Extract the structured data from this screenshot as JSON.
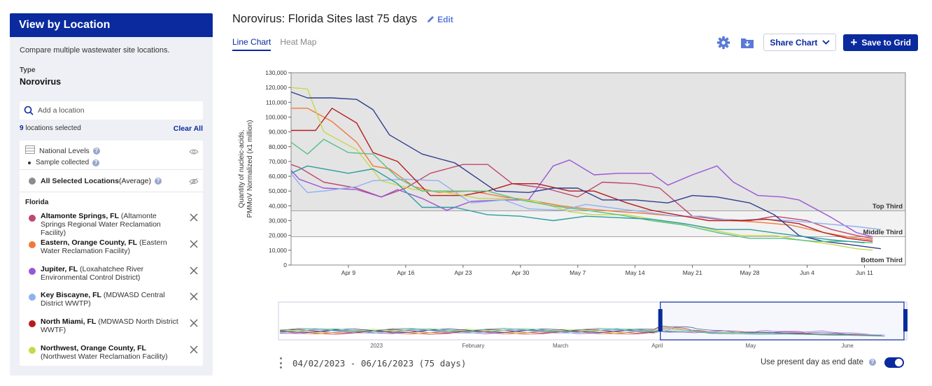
{
  "sidebar": {
    "header": "View by Location",
    "subtitle": "Compare multiple wastewater site locations.",
    "type_label": "Type",
    "type_value": "Norovirus",
    "search_placeholder": "Add a location",
    "selected_count": "9",
    "selected_suffix": " locations selected",
    "clear_all": "Clear All",
    "national_levels": "National Levels",
    "sample_collected": "Sample collected",
    "avg_name": "All Selected Locations",
    "avg_suffix": " (Average)",
    "avg_color": "#8c8c8c",
    "region": "Florida",
    "locations": [
      {
        "name": "Altamonte Springs, FL",
        "detail": " (Altamonte Springs Regional Water Reclamation Facility)",
        "color": "#c0476e"
      },
      {
        "name": "Eastern, Orange County, FL",
        "detail": " (Eastern Water Reclamation Facility)",
        "color": "#f07a3a"
      },
      {
        "name": "Jupiter, FL",
        "detail": " (Loxahatchee River Environmental Control District)",
        "color": "#9b55d6"
      },
      {
        "name": "Key Biscayne, FL",
        "detail": " (MDWASD Central District WWTP)",
        "color": "#8fb0f2"
      },
      {
        "name": "North Miami, FL",
        "detail": " (MDWASD North District WWTF)",
        "color": "#b51d1d"
      },
      {
        "name": "Northwest, Orange County, FL",
        "detail": " (Northwest Water Reclamation Facility)",
        "color": "#c6d94a"
      }
    ]
  },
  "main": {
    "title": "Norovirus: Florida Sites last 75 days",
    "edit_label": "Edit",
    "tabs": [
      {
        "label": "Line Chart",
        "active": true
      },
      {
        "label": "Heat Map",
        "active": false
      }
    ],
    "share_label": "Share Chart",
    "save_label": "Save to Grid",
    "date_range": "04/02/2023 - 06/16/2023 (75 days)",
    "present_day_label": "Use present day as end date",
    "present_day_on": true
  },
  "chart_data": {
    "type": "line",
    "ylabel": "Quantity of nucleic-acids, PMMoV Normalized (x1 million)",
    "ylim": [
      0,
      130000
    ],
    "yticks": [
      0,
      10000,
      20000,
      30000,
      40000,
      50000,
      60000,
      70000,
      80000,
      90000,
      100000,
      110000,
      120000,
      130000
    ],
    "ytick_labels": [
      "0",
      "10,000",
      "20,000",
      "30,000",
      "40,000",
      "50,000",
      "60,000",
      "70,000",
      "80,000",
      "90,000",
      "100,000",
      "110,000",
      "120,000",
      "130,000"
    ],
    "x_start": "2023-04-02",
    "x_end": "2023-06-16",
    "xticks": [
      "2023-04-09",
      "2023-04-16",
      "2023-04-23",
      "2023-04-30",
      "2023-05-07",
      "2023-05-14",
      "2023-05-21",
      "2023-05-28",
      "2023-06-04",
      "2023-06-11"
    ],
    "xtick_labels": [
      "Apr 9",
      "Apr 16",
      "Apr 23",
      "Apr 30",
      "May 7",
      "May 14",
      "May 21",
      "May 28",
      "Jun 4",
      "Jun 11"
    ],
    "thresholds": [
      {
        "label": "Top Third",
        "from": 36500,
        "to": 130000,
        "fill": "#e4e4e4"
      },
      {
        "label": "Middle Third",
        "from": 19000,
        "to": 36500,
        "fill": "#f2f2f2"
      },
      {
        "label": "Bottom Third",
        "from": 0,
        "to": 19000,
        "fill": "#ffffff"
      }
    ],
    "series": [
      {
        "name": "Altamonte Springs, FL",
        "color": "#c0476e",
        "x": [
          "2023-04-02",
          "2023-04-03",
          "2023-04-06",
          "2023-04-10",
          "2023-04-13",
          "2023-04-16",
          "2023-04-19",
          "2023-04-23",
          "2023-04-26",
          "2023-04-29",
          "2023-05-03",
          "2023-05-07",
          "2023-05-10",
          "2023-05-14",
          "2023-05-17",
          "2023-05-21",
          "2023-05-24",
          "2023-05-28",
          "2023-05-31",
          "2023-06-04",
          "2023-06-07",
          "2023-06-10",
          "2023-06-12"
        ],
        "y": [
          68000,
          66000,
          56000,
          52000,
          46000,
          52000,
          62000,
          68000,
          68000,
          55000,
          52000,
          46000,
          56000,
          55000,
          52000,
          33000,
          31000,
          30000,
          33000,
          30000,
          24000,
          20000,
          18000
        ]
      },
      {
        "name": "Eastern, Orange County, FL",
        "color": "#f07a3a",
        "x": [
          "2023-04-02",
          "2023-04-04",
          "2023-04-07",
          "2023-04-10",
          "2023-04-12",
          "2023-04-14",
          "2023-04-17",
          "2023-04-20",
          "2023-04-24",
          "2023-04-28",
          "2023-05-01",
          "2023-05-05",
          "2023-05-08",
          "2023-05-12",
          "2023-05-15",
          "2023-05-19",
          "2023-05-22",
          "2023-05-26",
          "2023-05-29",
          "2023-06-02",
          "2023-06-06",
          "2023-06-09",
          "2023-06-12"
        ],
        "y": [
          106000,
          106000,
          97000,
          83000,
          67000,
          65000,
          53000,
          49000,
          50000,
          46000,
          44000,
          40000,
          38000,
          36000,
          35000,
          33000,
          33000,
          30000,
          29000,
          27000,
          22000,
          19000,
          17000
        ]
      },
      {
        "name": "Jupiter, FL",
        "color": "#9b55d6",
        "x": [
          "2023-04-02",
          "2023-04-03",
          "2023-04-06",
          "2023-04-10",
          "2023-04-13",
          "2023-04-15",
          "2023-04-18",
          "2023-04-21",
          "2023-04-24",
          "2023-04-28",
          "2023-05-01",
          "2023-05-04",
          "2023-05-06",
          "2023-05-09",
          "2023-05-12",
          "2023-05-16",
          "2023-05-18",
          "2023-05-21",
          "2023-05-24",
          "2023-05-26",
          "2023-05-29",
          "2023-06-01",
          "2023-06-03",
          "2023-06-07",
          "2023-06-10",
          "2023-06-12"
        ],
        "y": [
          64000,
          58000,
          52000,
          51000,
          46000,
          51000,
          45000,
          37000,
          43000,
          44000,
          44000,
          67000,
          71000,
          61000,
          62000,
          62000,
          54000,
          61000,
          67000,
          56000,
          47000,
          46000,
          44000,
          32000,
          22000,
          19000
        ]
      },
      {
        "name": "Key Biscayne, FL",
        "color": "#8fb0f2",
        "x": [
          "2023-04-02",
          "2023-04-03",
          "2023-04-04",
          "2023-04-06",
          "2023-04-10",
          "2023-04-12",
          "2023-04-16",
          "2023-04-20",
          "2023-04-24",
          "2023-04-28",
          "2023-05-01",
          "2023-05-05",
          "2023-05-08",
          "2023-05-12",
          "2023-05-15",
          "2023-05-19",
          "2023-05-22",
          "2023-05-26",
          "2023-05-29",
          "2023-06-02",
          "2023-06-06",
          "2023-06-10",
          "2023-06-13"
        ],
        "y": [
          62000,
          55000,
          49000,
          50000,
          53000,
          57000,
          58000,
          57000,
          42000,
          44000,
          38000,
          37000,
          41000,
          38000,
          36000,
          33000,
          33000,
          30000,
          31000,
          30000,
          28000,
          26000,
          24000
        ]
      },
      {
        "name": "North Miami, FL",
        "color": "#b51d1d",
        "x": [
          "2023-04-02",
          "2023-04-05",
          "2023-04-07",
          "2023-04-10",
          "2023-04-12",
          "2023-04-15",
          "2023-04-19",
          "2023-04-23",
          "2023-04-26",
          "2023-04-29",
          "2023-05-02",
          "2023-05-06",
          "2023-05-09",
          "2023-05-13",
          "2023-05-16",
          "2023-05-20",
          "2023-05-23",
          "2023-05-27",
          "2023-05-30",
          "2023-06-03",
          "2023-06-06",
          "2023-06-09",
          "2023-06-12"
        ],
        "y": [
          91000,
          91000,
          106000,
          96000,
          76000,
          70000,
          47000,
          47000,
          50000,
          55000,
          55000,
          50000,
          50000,
          42000,
          37000,
          33000,
          30000,
          30000,
          31000,
          28000,
          22000,
          18000,
          16000
        ]
      },
      {
        "name": "Northwest, Orange County, FL",
        "color": "#c6d94a",
        "x": [
          "2023-04-02",
          "2023-04-04",
          "2023-04-06",
          "2023-04-10",
          "2023-04-13",
          "2023-04-17",
          "2023-04-21",
          "2023-04-25",
          "2023-04-29",
          "2023-05-02",
          "2023-05-06",
          "2023-05-09",
          "2023-05-13",
          "2023-05-17",
          "2023-05-21",
          "2023-05-24",
          "2023-05-27",
          "2023-05-31",
          "2023-06-03",
          "2023-06-07",
          "2023-06-10",
          "2023-06-12"
        ],
        "y": [
          120000,
          119000,
          90000,
          78000,
          57000,
          51000,
          49000,
          45000,
          45000,
          43000,
          36000,
          34000,
          34000,
          30000,
          27000,
          23000,
          20000,
          20000,
          17000,
          14000,
          11000,
          10000
        ]
      },
      {
        "name": "",
        "color": "#2f3f8f",
        "x": [
          "2023-04-02",
          "2023-04-04",
          "2023-04-07",
          "2023-04-10",
          "2023-04-12",
          "2023-04-14",
          "2023-04-18",
          "2023-04-22",
          "2023-04-27",
          "2023-05-01",
          "2023-05-04",
          "2023-05-07",
          "2023-05-10",
          "2023-05-14",
          "2023-05-18",
          "2023-05-21",
          "2023-05-24",
          "2023-05-28",
          "2023-05-31",
          "2023-06-03",
          "2023-06-06",
          "2023-06-09",
          "2023-06-13"
        ],
        "y": [
          117000,
          113000,
          113000,
          112000,
          105000,
          88000,
          75000,
          69000,
          50000,
          49000,
          52000,
          52000,
          44000,
          44000,
          42000,
          47000,
          46000,
          42000,
          34000,
          20000,
          16000,
          14000,
          11000
        ]
      },
      {
        "name": "",
        "color": "#58c08a",
        "x": [
          "2023-04-02",
          "2023-04-04",
          "2023-04-06",
          "2023-04-09",
          "2023-04-12",
          "2023-04-15",
          "2023-04-18",
          "2023-04-22",
          "2023-04-26",
          "2023-04-30",
          "2023-05-04",
          "2023-05-08",
          "2023-05-12",
          "2023-05-16",
          "2023-05-20",
          "2023-05-24",
          "2023-05-28",
          "2023-06-01",
          "2023-06-05",
          "2023-06-09",
          "2023-06-12"
        ],
        "y": [
          83000,
          75000,
          85000,
          76000,
          75000,
          59000,
          50000,
          50000,
          50000,
          44000,
          40000,
          37000,
          34000,
          30000,
          27000,
          22000,
          18000,
          18000,
          16000,
          16000,
          15000
        ]
      },
      {
        "name": "",
        "color": "#2f9ca0",
        "x": [
          "2023-04-02",
          "2023-04-04",
          "2023-04-09",
          "2023-04-12",
          "2023-04-15",
          "2023-04-18",
          "2023-04-22",
          "2023-04-26",
          "2023-04-30",
          "2023-05-04",
          "2023-05-08",
          "2023-05-12",
          "2023-05-16",
          "2023-05-20",
          "2023-05-24",
          "2023-05-28",
          "2023-06-01",
          "2023-06-04",
          "2023-06-07",
          "2023-06-11"
        ],
        "y": [
          62000,
          67000,
          62000,
          65000,
          55000,
          39000,
          39000,
          34000,
          33000,
          30000,
          33000,
          32000,
          31000,
          28000,
          24000,
          24000,
          21000,
          19000,
          17000,
          15000
        ]
      }
    ],
    "overview": {
      "xtick_labels": [
        "2023",
        "February",
        "March",
        "April",
        "May",
        "June"
      ],
      "window_label_range": [
        "04/02/2023",
        "06/16/2023"
      ]
    }
  }
}
